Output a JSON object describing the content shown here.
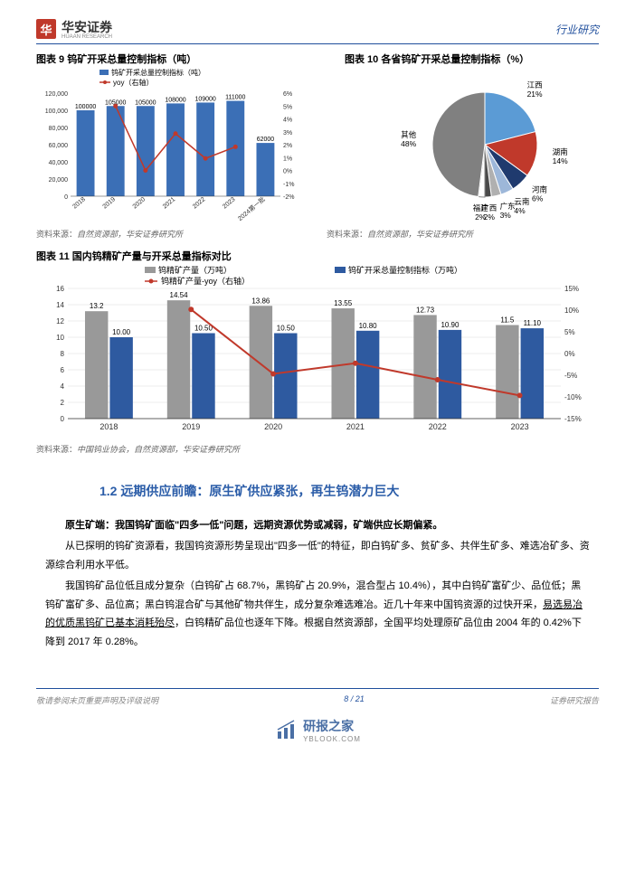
{
  "header": {
    "logo_char": "华",
    "logo_text": "华安证券",
    "logo_sub": "HUAAN RESEARCH",
    "right": "行业研究"
  },
  "chart9": {
    "title": "图表 9 钨矿开采总量控制指标（吨）",
    "type": "bar+line",
    "legend_bar": "钨矿开采总量控制指标（吨）",
    "legend_line": "yoy（右轴）",
    "categories": [
      "2018",
      "2019",
      "2020",
      "2021",
      "2022",
      "2023",
      "2024第一批"
    ],
    "bar_values": [
      100000,
      105000,
      105000,
      108000,
      109000,
      111000,
      62000
    ],
    "bar_labels": [
      "100000",
      "105000",
      "105000",
      "108000",
      "109000",
      "111000",
      "62000"
    ],
    "line_values": [
      null,
      5,
      0,
      2.86,
      0.93,
      1.83,
      null
    ],
    "y1_max": 120000,
    "y1_ticks": [
      0,
      20000,
      40000,
      60000,
      80000,
      100000,
      120000
    ],
    "y2_min": -2,
    "y2_max": 6,
    "y2_ticks": [
      "-2%",
      "-1%",
      "0%",
      "1%",
      "2%",
      "3%",
      "4%",
      "5%",
      "6%"
    ],
    "bar_color": "#3b6fb6",
    "line_color": "#c0392b",
    "source_label": "资料来源：",
    "source": "自然资源部，华安证券研究所"
  },
  "chart10": {
    "title": "图表 10 各省钨矿开采总量控制指标（%）",
    "type": "pie",
    "slices": [
      {
        "label": "江西",
        "value": 21,
        "color": "#5b9bd5"
      },
      {
        "label": "湖南",
        "value": 14,
        "color": "#c0392b"
      },
      {
        "label": "河南",
        "value": 6,
        "color": "#1f3a6e"
      },
      {
        "label": "云南",
        "value": 4,
        "color": "#9db7d9"
      },
      {
        "label": "广东",
        "value": 3,
        "color": "#b0b0b0"
      },
      {
        "label": "广西",
        "value": 2,
        "color": "#4a4a4a"
      },
      {
        "label": "福建",
        "value": 2,
        "color": "#ffffff",
        "stroke": "#888"
      },
      {
        "label": "其他",
        "value": 48,
        "color": "#808080"
      }
    ],
    "source_label": "资料来源：",
    "source": "自然资源部，华安证券研究所"
  },
  "chart11": {
    "title": "图表 11 国内钨精矿产量与开采总量指标对比",
    "type": "grouped-bar+line",
    "legend1": "钨精矿产量（万吨）",
    "legend2": "钨矿开采总量控制指标（万吨）",
    "legend3": "钨精矿产量-yoy（右轴）",
    "categories": [
      "2018",
      "2019",
      "2020",
      "2021",
      "2022",
      "2023"
    ],
    "series1": [
      13.2,
      14.54,
      13.86,
      13.55,
      12.73,
      11.5
    ],
    "series2": [
      10.0,
      10.5,
      10.5,
      10.8,
      10.9,
      11.1
    ],
    "s1_labels": [
      "13.2",
      "14.54",
      "13.86",
      "13.55",
      "12.73",
      "11.5"
    ],
    "s2_labels": [
      "10.00",
      "10.50",
      "10.50",
      "10.80",
      "10.90",
      "11.10"
    ],
    "line_values": [
      null,
      10.15,
      -4.68,
      -2.24,
      -6.05,
      -9.66
    ],
    "y1_max": 16,
    "y1_ticks": [
      0,
      2,
      4,
      6,
      8,
      10,
      12,
      14,
      16
    ],
    "y2_min": -15,
    "y2_max": 15,
    "y2_ticks": [
      "-15%",
      "-10%",
      "-5%",
      "0%",
      "5%",
      "10%",
      "15%"
    ],
    "color1": "#999999",
    "color2": "#2e5aa0",
    "line_color": "#c0392b",
    "source_label": "资料来源：",
    "source": "中国钨业协会，自然资源部，华安证券研究所"
  },
  "section": {
    "title": "1.2 远期供应前瞻：原生矿供应紧张，再生钨潜力巨大",
    "p_bold": "原生矿端：我国钨矿面临\"四多一低\"问题，远期资源优势或减弱，矿端供应长期偏紧。",
    "p1": "从已探明的钨矿资源看，我国钨资源形势呈现出\"四多一低\"的特征，即白钨矿多、贫矿多、共伴生矿多、难选冶矿多、资源综合利用水平低。",
    "p2_a": "我国钨矿品位低且成分复杂（白钨矿占 68.7%，黑钨矿占 20.9%，混合型占 10.4%），其中白钨矿富矿少、品位低；黑钨矿富矿多、品位高；黑白钨混合矿与其他矿物共伴生，成分复杂难选难冶。近几十年来中国钨资源的过快开采，",
    "p2_u": "易选易冶的优质黑钨矿已基本消耗殆尽",
    "p2_b": "，白钨精矿品位也逐年下降。根据自然资源部，全国平均处理原矿品位由 2004 年的 0.42%下降到 2017 年 0.28%。"
  },
  "footer": {
    "left": "敬请参阅末页重要声明及评级说明",
    "mid": "8 / 21",
    "right": "证券研究报告"
  },
  "watermark": {
    "cn": "研报之家",
    "en": "YBLOOK.COM"
  }
}
